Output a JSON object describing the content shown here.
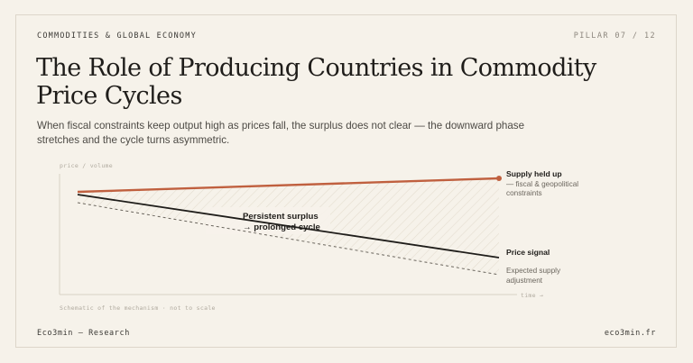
{
  "header": {
    "kicker": "COMMODITIES & GLOBAL ECONOMY",
    "pillar": "PILLAR 07 / 12"
  },
  "title": "The Role of Producing Countries in Commodity Price Cycles",
  "subtitle": "When fiscal constraints keep output high as prices fall, the surplus does not clear — the downward phase stretches and the cycle turns asymmetric.",
  "diagram": {
    "y_axis_label": "price / volume",
    "x_axis_label": "time →",
    "note": "Schematic of the mechanism · not to scale",
    "annotation_line1": "Persistent surplus",
    "annotation_line2": "→ prolonged cycle",
    "series": {
      "supply": {
        "label": "Supply held up",
        "sub1": "— fiscal & geopolitical",
        "sub2": "constraints",
        "color": "#c0603f"
      },
      "price": {
        "label": "Price signal",
        "color": "#1f1d1a"
      },
      "expected": {
        "label1": "Expected supply",
        "label2": "adjustment",
        "color": "#6b665e"
      }
    }
  },
  "footer": {
    "left": "Eco3min — Research",
    "right": "eco3min.fr"
  }
}
